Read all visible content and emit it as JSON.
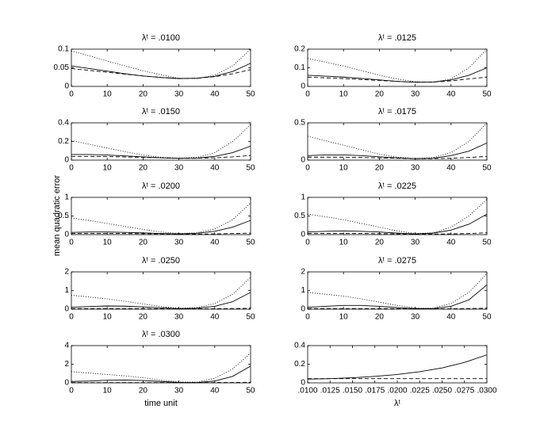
{
  "ylabel": "mean quadratic error",
  "chart_data": [
    {
      "type": "line",
      "title": "λᵗ = .0100",
      "x": [
        0,
        5,
        10,
        15,
        20,
        25,
        30,
        35,
        40,
        45,
        50
      ],
      "xlim": [
        0,
        50
      ],
      "xticks": [
        0,
        10,
        20,
        30,
        40,
        50
      ],
      "ylim": [
        0,
        0.1
      ],
      "yticks": [
        0,
        0.05,
        0.1
      ],
      "series": [
        {
          "color": "#000",
          "style": "solid",
          "values": [
            0.055,
            0.048,
            0.041,
            0.034,
            0.028,
            0.024,
            0.021,
            0.022,
            0.027,
            0.04,
            0.062
          ]
        },
        {
          "color": "#000",
          "style": "dashed",
          "values": [
            0.048,
            0.043,
            0.038,
            0.033,
            0.028,
            0.024,
            0.021,
            0.022,
            0.026,
            0.034,
            0.045
          ]
        },
        {
          "color": "#000",
          "style": "dotted",
          "values": [
            0.095,
            0.082,
            0.068,
            0.055,
            0.042,
            0.031,
            0.022,
            0.021,
            0.03,
            0.055,
            0.1
          ]
        }
      ]
    },
    {
      "type": "line",
      "title": "λᵗ = .0125",
      "x": [
        0,
        5,
        10,
        15,
        20,
        25,
        30,
        35,
        40,
        45,
        50
      ],
      "xlim": [
        0,
        50
      ],
      "xticks": [
        0,
        10,
        20,
        30,
        40,
        50
      ],
      "ylim": [
        0,
        0.2
      ],
      "yticks": [
        0,
        0.1,
        0.2
      ],
      "series": [
        {
          "color": "#000",
          "style": "solid",
          "values": [
            0.06,
            0.055,
            0.05,
            0.043,
            0.035,
            0.027,
            0.022,
            0.023,
            0.035,
            0.06,
            0.1
          ]
        },
        {
          "color": "#000",
          "style": "dashed",
          "values": [
            0.05,
            0.046,
            0.042,
            0.037,
            0.032,
            0.027,
            0.023,
            0.023,
            0.03,
            0.04,
            0.05
          ]
        },
        {
          "color": "#000",
          "style": "dotted",
          "values": [
            0.15,
            0.13,
            0.11,
            0.085,
            0.06,
            0.04,
            0.025,
            0.022,
            0.04,
            0.1,
            0.2
          ]
        }
      ]
    },
    {
      "type": "line",
      "title": "λᵗ = .0150",
      "x": [
        0,
        5,
        10,
        15,
        20,
        25,
        30,
        35,
        40,
        45,
        50
      ],
      "xlim": [
        0,
        50
      ],
      "xticks": [
        0,
        10,
        20,
        30,
        40,
        50
      ],
      "ylim": [
        0,
        0.4
      ],
      "yticks": [
        0,
        0.2,
        0.4
      ],
      "series": [
        {
          "color": "#000",
          "style": "solid",
          "values": [
            0.06,
            0.06,
            0.055,
            0.045,
            0.035,
            0.025,
            0.02,
            0.022,
            0.04,
            0.08,
            0.15
          ]
        },
        {
          "color": "#000",
          "style": "dashed",
          "values": [
            0.04,
            0.04,
            0.038,
            0.034,
            0.03,
            0.025,
            0.02,
            0.02,
            0.025,
            0.035,
            0.05
          ]
        },
        {
          "color": "#000",
          "style": "dotted",
          "values": [
            0.21,
            0.17,
            0.13,
            0.09,
            0.055,
            0.03,
            0.02,
            0.03,
            0.08,
            0.2,
            0.38
          ]
        }
      ]
    },
    {
      "type": "line",
      "title": "λᵗ = .0175",
      "x": [
        0,
        5,
        10,
        15,
        20,
        25,
        30,
        35,
        40,
        45,
        50
      ],
      "xlim": [
        0,
        50
      ],
      "xticks": [
        0,
        10,
        20,
        30,
        40,
        50
      ],
      "ylim": [
        0,
        0.5
      ],
      "yticks": [
        0,
        0.5
      ],
      "series": [
        {
          "color": "#000",
          "style": "solid",
          "values": [
            0.06,
            0.07,
            0.07,
            0.06,
            0.045,
            0.03,
            0.02,
            0.025,
            0.06,
            0.12,
            0.23
          ]
        },
        {
          "color": "#000",
          "style": "dashed",
          "values": [
            0.04,
            0.04,
            0.04,
            0.035,
            0.03,
            0.025,
            0.02,
            0.02,
            0.025,
            0.035,
            0.05
          ]
        },
        {
          "color": "#000",
          "style": "dotted",
          "values": [
            0.32,
            0.26,
            0.2,
            0.14,
            0.08,
            0.04,
            0.02,
            0.035,
            0.1,
            0.25,
            0.5
          ]
        }
      ]
    },
    {
      "type": "line",
      "title": "λᵗ = .0200",
      "x": [
        0,
        5,
        10,
        15,
        20,
        25,
        30,
        35,
        40,
        45,
        50
      ],
      "xlim": [
        0,
        50
      ],
      "xticks": [
        0,
        10,
        20,
        30,
        40,
        50
      ],
      "ylim": [
        0,
        1
      ],
      "yticks": [
        0,
        0.5,
        1
      ],
      "series": [
        {
          "color": "#000",
          "style": "solid",
          "values": [
            0.06,
            0.07,
            0.07,
            0.06,
            0.045,
            0.03,
            0.02,
            0.035,
            0.09,
            0.2,
            0.38
          ]
        },
        {
          "color": "#000",
          "style": "dashed",
          "values": [
            0.03,
            0.03,
            0.03,
            0.03,
            0.025,
            0.02,
            0.015,
            0.015,
            0.02,
            0.03,
            0.04
          ]
        },
        {
          "color": "#000",
          "style": "dotted",
          "values": [
            0.45,
            0.38,
            0.3,
            0.22,
            0.14,
            0.07,
            0.03,
            0.05,
            0.15,
            0.4,
            0.85
          ]
        }
      ]
    },
    {
      "type": "line",
      "title": "λᵗ = .0225",
      "x": [
        0,
        5,
        10,
        15,
        20,
        25,
        30,
        35,
        40,
        45,
        50
      ],
      "xlim": [
        0,
        50
      ],
      "xticks": [
        0,
        10,
        20,
        30,
        40,
        50
      ],
      "ylim": [
        0,
        1
      ],
      "yticks": [
        0,
        0.5,
        1
      ],
      "series": [
        {
          "color": "#000",
          "style": "solid",
          "values": [
            0.07,
            0.09,
            0.1,
            0.09,
            0.07,
            0.04,
            0.02,
            0.04,
            0.12,
            0.28,
            0.55
          ]
        },
        {
          "color": "#000",
          "style": "dashed",
          "values": [
            0.03,
            0.03,
            0.03,
            0.03,
            0.025,
            0.02,
            0.015,
            0.015,
            0.02,
            0.03,
            0.05
          ]
        },
        {
          "color": "#000",
          "style": "dotted",
          "values": [
            0.55,
            0.48,
            0.4,
            0.3,
            0.2,
            0.1,
            0.03,
            0.05,
            0.2,
            0.5,
            0.95
          ]
        }
      ]
    },
    {
      "type": "line",
      "title": "λᵗ = .0250",
      "x": [
        0,
        5,
        10,
        15,
        20,
        25,
        30,
        35,
        40,
        45,
        50
      ],
      "xlim": [
        0,
        50
      ],
      "xticks": [
        0,
        10,
        20,
        30,
        40,
        50
      ],
      "ylim": [
        0,
        2
      ],
      "yticks": [
        0,
        1,
        2
      ],
      "series": [
        {
          "color": "#000",
          "style": "solid",
          "values": [
            0.1,
            0.14,
            0.17,
            0.16,
            0.12,
            0.07,
            0.03,
            0.05,
            0.15,
            0.4,
            0.9
          ]
        },
        {
          "color": "#000",
          "style": "dashed",
          "values": [
            0.03,
            0.03,
            0.03,
            0.03,
            0.03,
            0.02,
            0.02,
            0.02,
            0.02,
            0.03,
            0.05
          ]
        },
        {
          "color": "#000",
          "style": "dotted",
          "values": [
            0.75,
            0.65,
            0.55,
            0.42,
            0.28,
            0.14,
            0.05,
            0.08,
            0.3,
            0.8,
            1.7
          ]
        }
      ]
    },
    {
      "type": "line",
      "title": "λᵗ = .0275",
      "x": [
        0,
        5,
        10,
        15,
        20,
        25,
        30,
        35,
        40,
        45,
        50
      ],
      "xlim": [
        0,
        50
      ],
      "xticks": [
        0,
        10,
        20,
        30,
        40,
        50
      ],
      "ylim": [
        0,
        2
      ],
      "yticks": [
        0,
        1,
        2
      ],
      "series": [
        {
          "color": "#000",
          "style": "solid",
          "values": [
            0.1,
            0.15,
            0.2,
            0.2,
            0.15,
            0.08,
            0.03,
            0.03,
            0.15,
            0.5,
            1.3
          ]
        },
        {
          "color": "#000",
          "style": "dashed",
          "values": [
            0.03,
            0.03,
            0.03,
            0.03,
            0.03,
            0.02,
            0.02,
            0.02,
            0.02,
            0.03,
            0.05
          ]
        },
        {
          "color": "#000",
          "style": "dotted",
          "values": [
            0.9,
            0.8,
            0.7,
            0.55,
            0.38,
            0.2,
            0.06,
            0.05,
            0.3,
            0.9,
            1.9
          ]
        }
      ]
    },
    {
      "type": "line",
      "title": "λᵗ = .0300",
      "xlabel": "time unit",
      "x": [
        0,
        5,
        10,
        15,
        20,
        25,
        30,
        35,
        40,
        45,
        50
      ],
      "xlim": [
        0,
        50
      ],
      "xticks": [
        0,
        10,
        20,
        30,
        40,
        50
      ],
      "ylim": [
        0,
        4
      ],
      "yticks": [
        0,
        2,
        4
      ],
      "series": [
        {
          "color": "#000",
          "style": "solid",
          "values": [
            0.15,
            0.2,
            0.28,
            0.3,
            0.25,
            0.15,
            0.05,
            0.03,
            0.2,
            0.7,
            1.8
          ]
        },
        {
          "color": "#000",
          "style": "dashed",
          "values": [
            0.03,
            0.03,
            0.03,
            0.03,
            0.03,
            0.03,
            0.02,
            0.02,
            0.03,
            0.04,
            0.06
          ]
        },
        {
          "color": "#000",
          "style": "dotted",
          "values": [
            1.2,
            1.05,
            0.9,
            0.75,
            0.55,
            0.3,
            0.1,
            0.08,
            0.5,
            1.5,
            3.2
          ]
        }
      ]
    },
    {
      "type": "line",
      "xlabel": "λᵗ",
      "x": [
        0.01,
        0.0125,
        0.015,
        0.0175,
        0.02,
        0.0225,
        0.025,
        0.0275,
        0.03
      ],
      "xlim": [
        0.01,
        0.03
      ],
      "xticks": [
        {
          "value": 0.01,
          "label": ".0100"
        },
        {
          "value": 0.0125,
          "label": ".0125"
        },
        {
          "value": 0.015,
          "label": ".0150"
        },
        {
          "value": 0.0175,
          "label": ".0175"
        },
        {
          "value": 0.02,
          "label": ".0200"
        },
        {
          "value": 0.0225,
          "label": ".0225"
        },
        {
          "value": 0.025,
          "label": ".0250"
        },
        {
          "value": 0.0275,
          "label": ".0275"
        },
        {
          "value": 0.03,
          "label": ".0300"
        }
      ],
      "ylim": [
        0,
        0.4
      ],
      "yticks": [
        0,
        0.2,
        0.4
      ],
      "series": [
        {
          "color": "#000",
          "style": "solid",
          "values": [
            0.04,
            0.045,
            0.055,
            0.07,
            0.09,
            0.12,
            0.16,
            0.22,
            0.3
          ]
        },
        {
          "color": "#000",
          "style": "dashed",
          "values": [
            0.045,
            0.045,
            0.045,
            0.045,
            0.045,
            0.045,
            0.045,
            0.045,
            0.045
          ]
        }
      ]
    }
  ]
}
